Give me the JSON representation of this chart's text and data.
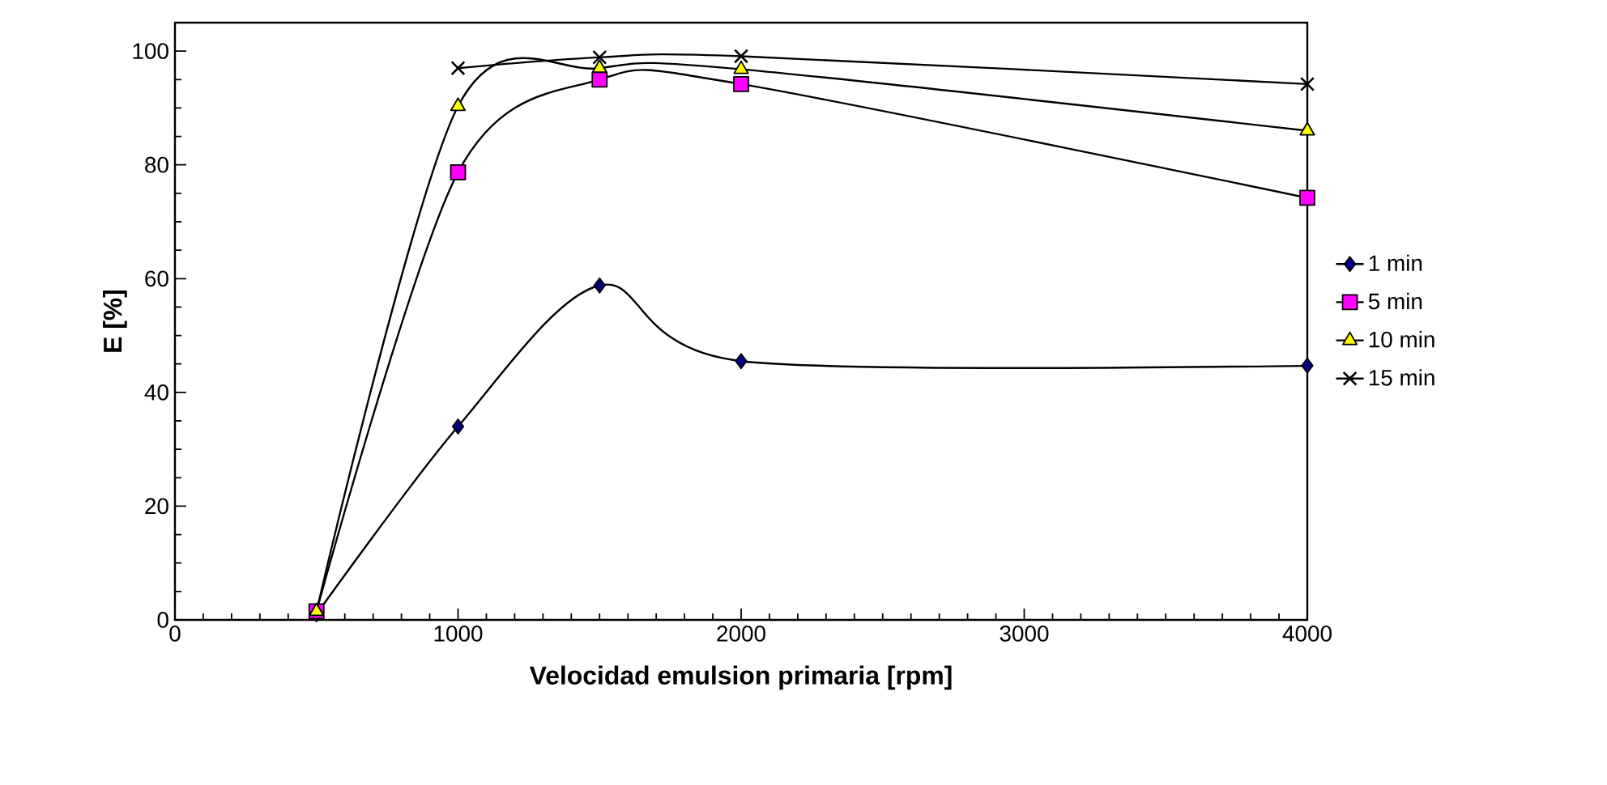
{
  "chart_data": {
    "type": "line",
    "xlabel": "Velocidad emulsion primaria [rpm]",
    "ylabel": "E [%]",
    "xlim": [
      0,
      4000
    ],
    "xticks": [
      0,
      1000,
      2000,
      3000,
      4000
    ],
    "ylim": [
      0,
      105
    ],
    "yticks": [
      0,
      20,
      40,
      60,
      80,
      100
    ],
    "grid": false,
    "legend": "right",
    "line_style": "solid",
    "series": [
      {
        "name": "1 min",
        "color": "#000080",
        "marker": "diamond",
        "x": [
          500,
          1000,
          1500,
          2000,
          4000
        ],
        "values": [
          1,
          34,
          58.8,
          45.5,
          44.7
        ]
      },
      {
        "name": "5 min",
        "color": "#ff00ff",
        "marker": "square",
        "x": [
          500,
          1000,
          1500,
          2000,
          4000
        ],
        "values": [
          1.5,
          78.7,
          95,
          94.2,
          74.2
        ]
      },
      {
        "name": "10 min",
        "color": "#ffff00",
        "marker": "triangle",
        "x": [
          500,
          1000,
          1500,
          2000,
          4000
        ],
        "values": [
          1.5,
          90.3,
          97,
          96.8,
          86
        ]
      },
      {
        "name": "15 min",
        "color": "#000000",
        "marker": "cross",
        "x": [
          1000,
          1500,
          2000,
          4000
        ],
        "values": [
          97,
          98.9,
          99.1,
          94.2
        ]
      }
    ]
  }
}
